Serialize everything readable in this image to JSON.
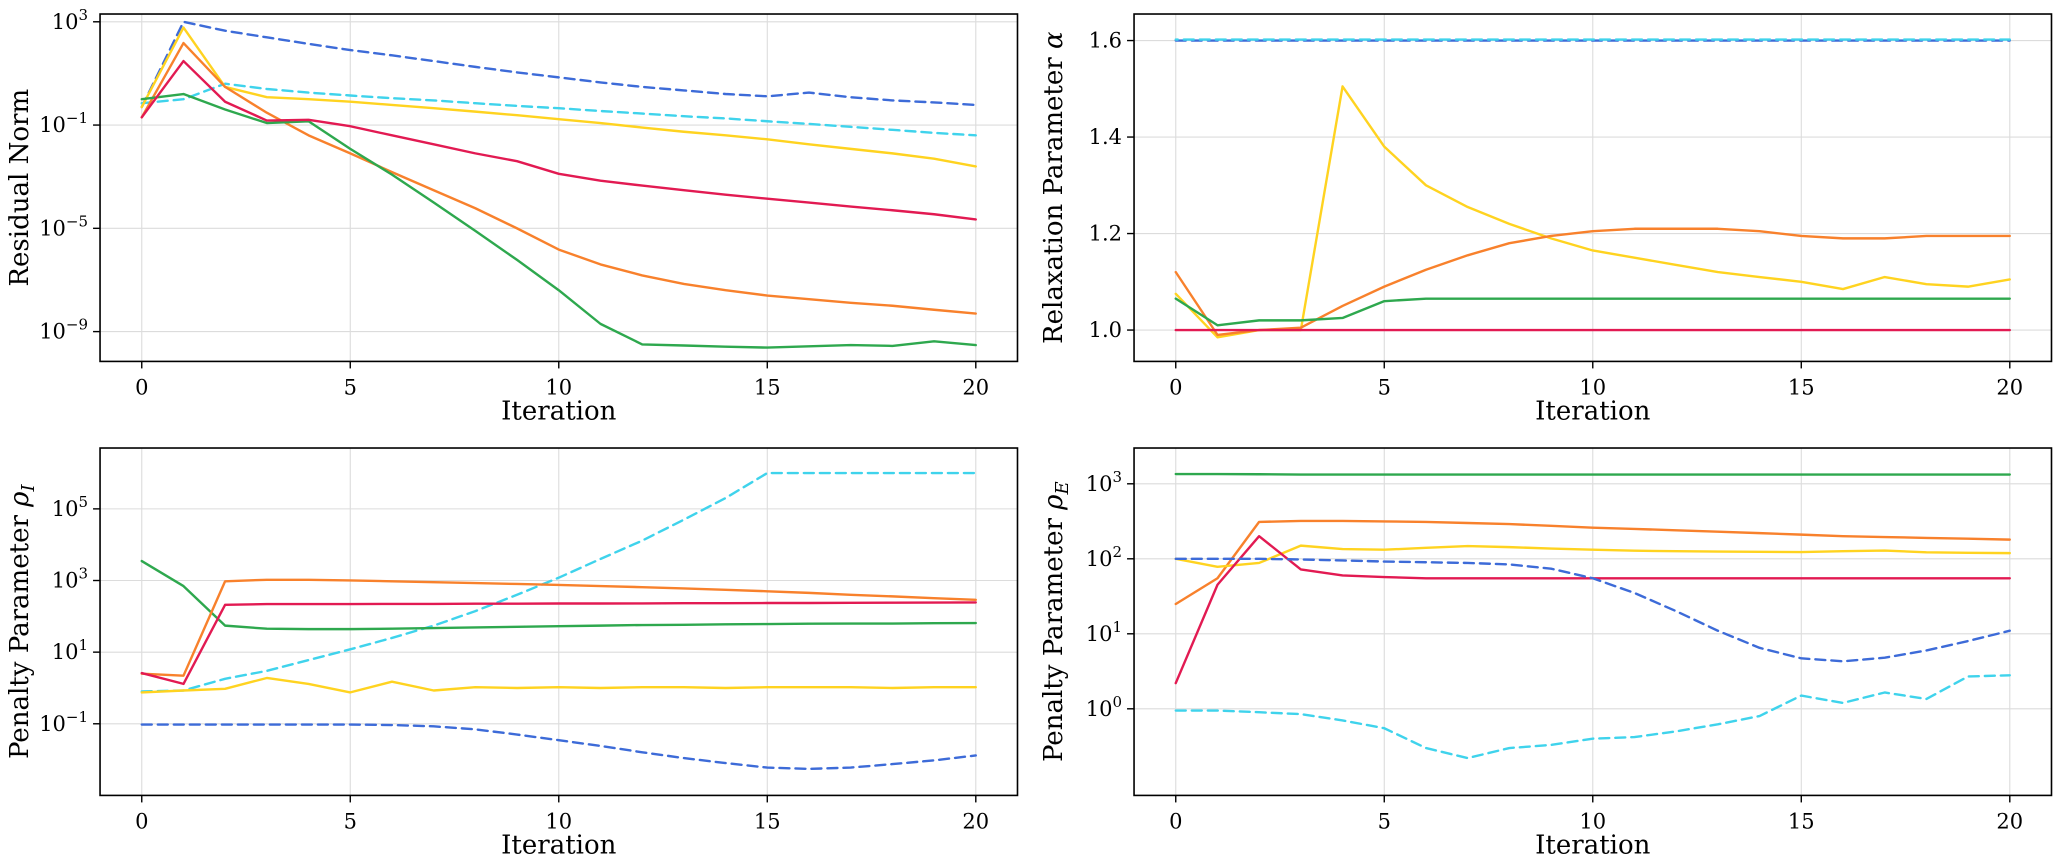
{
  "figure": {
    "background": "#ffffff",
    "grid_color": "#dcdcdc",
    "spine_color": "#000000",
    "text_color": "#000000"
  },
  "chart_data": [
    {
      "type": "line",
      "panel": "top-left",
      "title": "",
      "xlabel": "Iteration",
      "ylabel": {
        "prefix": "Residual Norm",
        "symbol": "",
        "sub": ""
      },
      "yscale": "log",
      "xlim": [
        -1,
        21
      ],
      "ylim": [
        7e-11,
        2000
      ],
      "xticks": [
        0,
        5,
        10,
        15,
        20
      ],
      "yticks": [
        {
          "v": 1000.0,
          "exp": "3"
        },
        {
          "v": 0.1,
          "exp": "−1"
        },
        {
          "v": 1e-05,
          "exp": "−5"
        },
        {
          "v": 1e-09,
          "exp": "−9"
        }
      ],
      "x": [
        0,
        1,
        2,
        3,
        4,
        5,
        6,
        7,
        8,
        9,
        10,
        11,
        12,
        13,
        14,
        15,
        16,
        17,
        18,
        19,
        20
      ],
      "series": [
        {
          "name": "blue-dashed",
          "color": "#3d6bd8",
          "dash": "10 6",
          "values": [
            0.5,
            1000,
            450,
            250,
            140,
            80,
            50,
            30,
            18,
            11,
            7,
            4.5,
            3,
            2.2,
            1.6,
            1.3,
            1.8,
            1.2,
            0.9,
            0.75,
            0.6
          ]
        },
        {
          "name": "cyan-dashed",
          "color": "#3fd3ec",
          "dash": "10 6",
          "values": [
            0.7,
            1.0,
            4,
            2.5,
            1.8,
            1.4,
            1.1,
            0.9,
            0.7,
            0.55,
            0.45,
            0.35,
            0.28,
            0.22,
            0.18,
            0.14,
            0.11,
            0.085,
            0.065,
            0.05,
            0.04
          ]
        },
        {
          "name": "yellow",
          "color": "#ffd320",
          "dash": null,
          "values": [
            0.5,
            600,
            3,
            1.2,
            1.0,
            0.8,
            0.6,
            0.45,
            0.33,
            0.24,
            0.17,
            0.12,
            0.08,
            0.055,
            0.04,
            0.028,
            0.018,
            0.012,
            0.008,
            0.005,
            0.0025
          ]
        },
        {
          "name": "orange",
          "color": "#f8812c",
          "dash": null,
          "values": [
            0.2,
            150,
            3,
            0.3,
            0.04,
            0.008,
            0.0015,
            0.0003,
            6e-05,
            1e-05,
            1.5e-06,
            4e-07,
            1.5e-07,
            7e-08,
            4e-08,
            2.5e-08,
            1.8e-08,
            1.3e-08,
            1e-08,
            7e-09,
            5e-09
          ]
        },
        {
          "name": "green",
          "color": "#2ea84e",
          "dash": null,
          "values": [
            1.0,
            1.6,
            0.4,
            0.12,
            0.14,
            0.012,
            0.0012,
            0.0001,
            8e-06,
            6e-07,
            4e-08,
            2e-09,
            3.2e-10,
            2.9e-10,
            2.6e-10,
            2.4e-10,
            2.7e-10,
            3e-10,
            2.8e-10,
            4.2e-10,
            3e-10
          ]
        },
        {
          "name": "red",
          "color": "#e21a52",
          "dash": null,
          "values": [
            0.2,
            30,
            0.8,
            0.15,
            0.16,
            0.09,
            0.04,
            0.018,
            0.008,
            0.004,
            0.0013,
            0.0007,
            0.00045,
            0.0003,
            0.0002,
            0.00014,
            0.0001,
            7e-05,
            5e-05,
            3.5e-05,
            2.2e-05
          ]
        }
      ]
    },
    {
      "type": "line",
      "panel": "top-right",
      "title": "",
      "xlabel": "Iteration",
      "ylabel": {
        "prefix": "Relaxation Parameter ",
        "symbol": "α",
        "sub": ""
      },
      "yscale": "linear",
      "xlim": [
        -1,
        21
      ],
      "ylim": [
        0.935,
        1.655
      ],
      "xticks": [
        0,
        5,
        10,
        15,
        20
      ],
      "yticks": [
        {
          "v": 1.0,
          "label": "1.0"
        },
        {
          "v": 1.2,
          "label": "1.2"
        },
        {
          "v": 1.4,
          "label": "1.4"
        },
        {
          "v": 1.6,
          "label": "1.6"
        }
      ],
      "x": [
        0,
        1,
        2,
        3,
        4,
        5,
        6,
        7,
        8,
        9,
        10,
        11,
        12,
        13,
        14,
        15,
        16,
        17,
        18,
        19,
        20
      ],
      "series": [
        {
          "name": "blue-dashed",
          "color": "#3d6bd8",
          "dash": "10 6",
          "values": [
            1.6,
            1.6,
            1.6,
            1.6,
            1.6,
            1.6,
            1.6,
            1.6,
            1.6,
            1.6,
            1.6,
            1.6,
            1.6,
            1.6,
            1.6,
            1.6,
            1.6,
            1.6,
            1.6,
            1.6,
            1.6
          ]
        },
        {
          "name": "cyan-dashed",
          "color": "#3fd3ec",
          "dash": "10 6",
          "dash_offset": 8,
          "values": [
            1.602,
            1.602,
            1.602,
            1.602,
            1.602,
            1.602,
            1.602,
            1.602,
            1.602,
            1.602,
            1.602,
            1.602,
            1.602,
            1.602,
            1.602,
            1.602,
            1.602,
            1.602,
            1.602,
            1.602,
            1.602
          ]
        },
        {
          "name": "yellow",
          "color": "#ffd320",
          "dash": null,
          "values": [
            1.075,
            0.985,
            1.0,
            1.0,
            1.505,
            1.38,
            1.3,
            1.255,
            1.22,
            1.19,
            1.165,
            1.15,
            1.135,
            1.12,
            1.11,
            1.1,
            1.085,
            1.11,
            1.095,
            1.09,
            1.105
          ]
        },
        {
          "name": "orange",
          "color": "#f8812c",
          "dash": null,
          "values": [
            1.12,
            0.99,
            1.0,
            1.005,
            1.05,
            1.09,
            1.125,
            1.155,
            1.18,
            1.195,
            1.205,
            1.21,
            1.21,
            1.21,
            1.205,
            1.195,
            1.19,
            1.19,
            1.195,
            1.195,
            1.195
          ]
        },
        {
          "name": "green",
          "color": "#2ea84e",
          "dash": null,
          "values": [
            1.065,
            1.01,
            1.02,
            1.02,
            1.025,
            1.06,
            1.065,
            1.065,
            1.065,
            1.065,
            1.065,
            1.065,
            1.065,
            1.065,
            1.065,
            1.065,
            1.065,
            1.065,
            1.065,
            1.065,
            1.065
          ]
        },
        {
          "name": "red",
          "color": "#e21a52",
          "dash": null,
          "values": [
            1.0,
            1.0,
            1.0,
            1.0,
            1.0,
            1.0,
            1.0,
            1.0,
            1.0,
            1.0,
            1.0,
            1.0,
            1.0,
            1.0,
            1.0,
            1.0,
            1.0,
            1.0,
            1.0,
            1.0,
            1.0
          ]
        }
      ]
    },
    {
      "type": "line",
      "panel": "bottom-left",
      "title": "",
      "xlabel": "Iteration",
      "ylabel": {
        "prefix": "Penalty Parameter ",
        "symbol": "ρ",
        "sub": "I"
      },
      "yscale": "log",
      "xlim": [
        -1,
        21
      ],
      "ylim": [
        0.001,
        5000000.0
      ],
      "xticks": [
        0,
        5,
        10,
        15,
        20
      ],
      "yticks": [
        {
          "v": 100000.0,
          "exp": "5"
        },
        {
          "v": 1000.0,
          "exp": "3"
        },
        {
          "v": 10.0,
          "exp": "1"
        },
        {
          "v": 0.1,
          "exp": "−1"
        }
      ],
      "x": [
        0,
        1,
        2,
        3,
        4,
        5,
        6,
        7,
        8,
        9,
        10,
        11,
        12,
        13,
        14,
        15,
        16,
        17,
        18,
        19,
        20
      ],
      "series": [
        {
          "name": "cyan-dashed",
          "color": "#3fd3ec",
          "dash": "10 6",
          "values": [
            0.8,
            0.85,
            1.8,
            3,
            6,
            12,
            25,
            55,
            140,
            400,
            1200,
            4000,
            13000.0,
            50000.0,
            200000.0,
            1000000.0,
            1000000.0,
            1000000.0,
            1000000.0,
            1000000.0,
            1000000.0
          ]
        },
        {
          "name": "blue-dashed",
          "color": "#3d6bd8",
          "dash": "10 6",
          "values": [
            0.095,
            0.095,
            0.095,
            0.095,
            0.095,
            0.095,
            0.092,
            0.085,
            0.07,
            0.05,
            0.035,
            0.024,
            0.016,
            0.011,
            0.008,
            0.006,
            0.0055,
            0.006,
            0.0075,
            0.0095,
            0.013
          ]
        },
        {
          "name": "green",
          "color": "#2ea84e",
          "dash": null,
          "values": [
            3500,
            700,
            55,
            45,
            44,
            44,
            45,
            47,
            49,
            51,
            53,
            55,
            57,
            58,
            60,
            61,
            62,
            63,
            63,
            64,
            65
          ]
        },
        {
          "name": "orange",
          "color": "#f8812c",
          "dash": null,
          "values": [
            2.5,
            2.2,
            950,
            1050,
            1050,
            1000,
            950,
            900,
            850,
            800,
            750,
            700,
            650,
            600,
            550,
            500,
            450,
            400,
            360,
            320,
            290
          ]
        },
        {
          "name": "red",
          "color": "#e21a52",
          "dash": null,
          "values": [
            2.6,
            1.3,
            210,
            220,
            220,
            220,
            222,
            222,
            225,
            225,
            228,
            228,
            230,
            232,
            232,
            235,
            235,
            238,
            240,
            242,
            245
          ]
        },
        {
          "name": "yellow",
          "color": "#ffd320",
          "dash": null,
          "values": [
            0.75,
            0.85,
            0.95,
            1.9,
            1.3,
            0.75,
            1.5,
            0.85,
            1.05,
            1.0,
            1.05,
            1.0,
            1.05,
            1.05,
            1.0,
            1.05,
            1.05,
            1.05,
            1.0,
            1.05,
            1.05
          ]
        }
      ]
    },
    {
      "type": "line",
      "panel": "bottom-right",
      "title": "",
      "xlabel": "Iteration",
      "ylabel": {
        "prefix": "Penalty Parameter ",
        "symbol": "ρ",
        "sub": "E"
      },
      "yscale": "log",
      "xlim": [
        -1,
        21
      ],
      "ylim": [
        0.07,
        3000
      ],
      "xticks": [
        0,
        5,
        10,
        15,
        20
      ],
      "yticks": [
        {
          "v": 1000.0,
          "exp": "3"
        },
        {
          "v": 100.0,
          "exp": "2"
        },
        {
          "v": 10.0,
          "exp": "1"
        },
        {
          "v": 1.0,
          "exp": "0"
        }
      ],
      "x": [
        0,
        1,
        2,
        3,
        4,
        5,
        6,
        7,
        8,
        9,
        10,
        11,
        12,
        13,
        14,
        15,
        16,
        17,
        18,
        19,
        20
      ],
      "series": [
        {
          "name": "green",
          "color": "#2ea84e",
          "dash": null,
          "values": [
            1350,
            1350,
            1340,
            1330,
            1330,
            1330,
            1330,
            1330,
            1330,
            1330,
            1330,
            1330,
            1330,
            1330,
            1330,
            1330,
            1330,
            1330,
            1330,
            1330,
            1330
          ]
        },
        {
          "name": "orange",
          "color": "#f8812c",
          "dash": null,
          "values": [
            25,
            55,
            310,
            320,
            320,
            315,
            310,
            300,
            290,
            275,
            260,
            250,
            240,
            230,
            220,
            210,
            200,
            195,
            190,
            185,
            180
          ]
        },
        {
          "name": "yellow",
          "color": "#ffd320",
          "dash": null,
          "values": [
            100,
            78,
            88,
            150,
            135,
            132,
            140,
            148,
            143,
            137,
            132,
            128,
            126,
            125,
            124,
            123,
            126,
            129,
            122,
            120,
            119
          ]
        },
        {
          "name": "red",
          "color": "#e21a52",
          "dash": null,
          "values": [
            2.2,
            45,
            200,
            72,
            60,
            57,
            55,
            55,
            55,
            55,
            55,
            55,
            55,
            55,
            55,
            55,
            55,
            55,
            55,
            55,
            55
          ]
        },
        {
          "name": "blue-dashed",
          "color": "#3d6bd8",
          "dash": "10 6",
          "values": [
            100,
            100,
            100,
            98,
            95,
            92,
            90,
            88,
            84,
            74,
            55,
            35,
            20,
            11,
            6.5,
            4.7,
            4.3,
            4.8,
            6,
            8,
            11
          ]
        },
        {
          "name": "cyan-dashed",
          "color": "#3fd3ec",
          "dash": "10 6",
          "values": [
            0.95,
            0.95,
            0.9,
            0.85,
            0.7,
            0.55,
            0.3,
            0.22,
            0.3,
            0.33,
            0.4,
            0.42,
            0.5,
            0.62,
            0.8,
            1.5,
            1.2,
            1.65,
            1.35,
            2.7,
            2.8
          ]
        }
      ]
    }
  ]
}
